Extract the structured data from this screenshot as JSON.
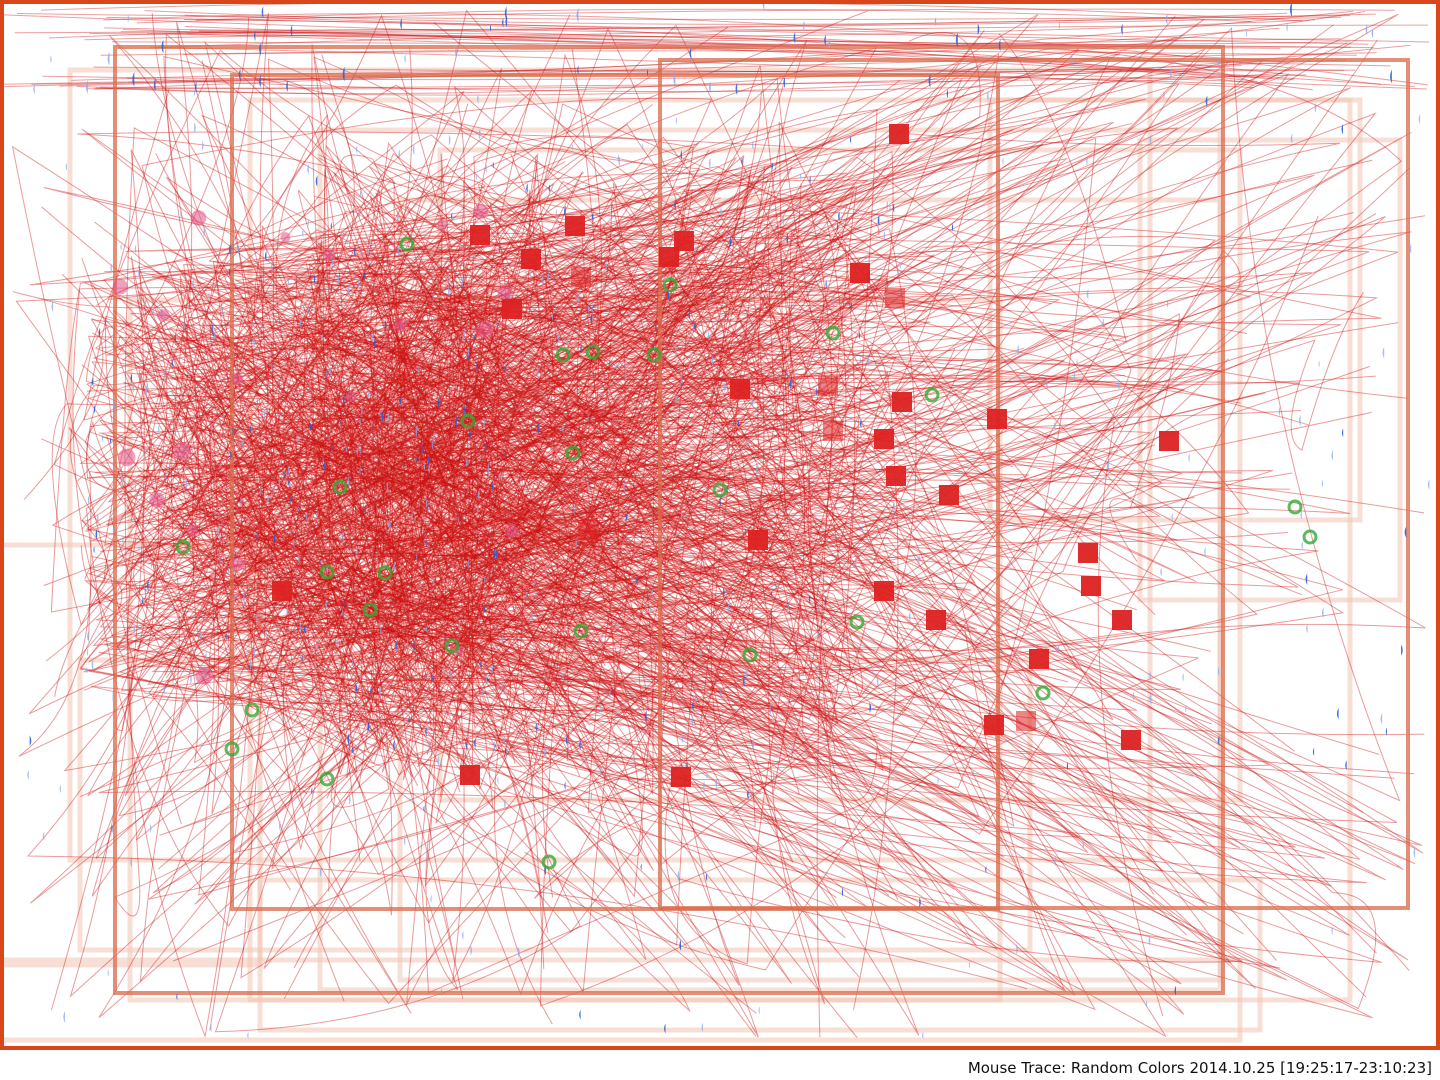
{
  "caption": "Mouse Trace: Random Colors 2014.10.25 [19:25:17-23:10:23]",
  "colors": {
    "path": "#cc1111",
    "window_frame": "#d96a4a",
    "window_frame_faint": "#f2c4b4",
    "border": "#d9461a",
    "click_down": "#2a5fd6",
    "click_light": "#8aa8ef",
    "scroll": "#33aa33",
    "drag_square": "#dd2222",
    "hover_pink": "#e0558a"
  },
  "legend_icons": {
    "click": "half-disc-icon",
    "scroll": "ring-icon",
    "drag": "square-icon"
  }
}
